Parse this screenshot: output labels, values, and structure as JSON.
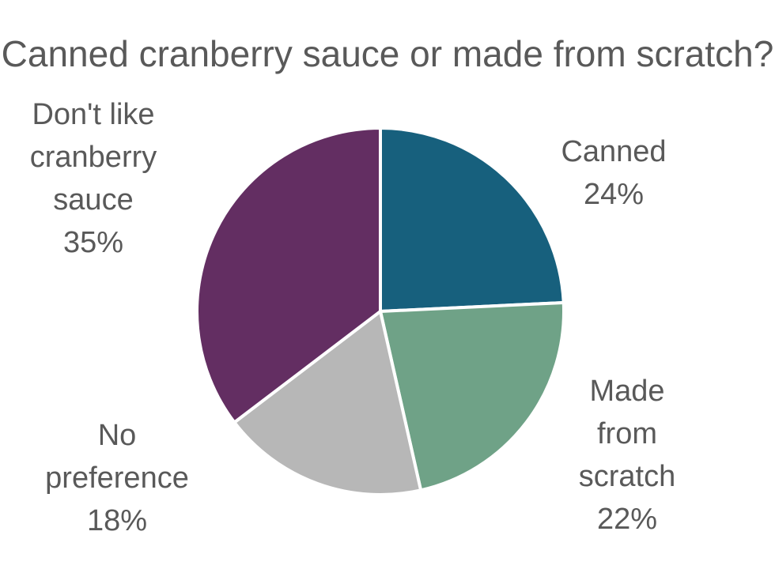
{
  "chart_data": {
    "type": "pie",
    "title": "Canned cranberry sauce or made from scratch?",
    "slices": [
      {
        "name": "Canned",
        "label_lines": [
          "Canned"
        ],
        "value": 24,
        "value_label": "24%",
        "color": "#17607D"
      },
      {
        "name": "Made from scratch",
        "label_lines": [
          "Made",
          "from",
          "scratch"
        ],
        "value": 22,
        "value_label": "22%",
        "color": "#6FA287"
      },
      {
        "name": "No preference",
        "label_lines": [
          "No",
          "preference"
        ],
        "value": 18,
        "value_label": "18%",
        "color": "#B7B7B7"
      },
      {
        "name": "Don't like cranberry sauce",
        "label_lines": [
          "Don't like",
          "cranberry",
          "sauce"
        ],
        "value": 35,
        "value_label": "35%",
        "color": "#632E62"
      }
    ],
    "start_angle_deg": 0,
    "direction": "clockwise",
    "legend": "none",
    "data_labels": "outside"
  }
}
